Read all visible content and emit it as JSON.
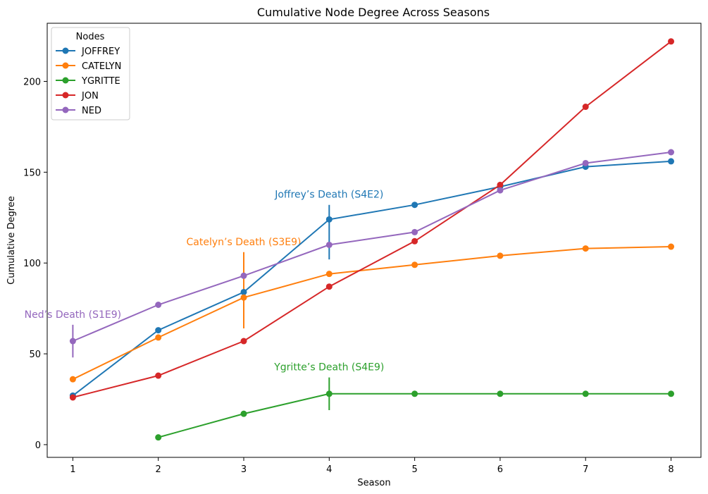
{
  "chart_data": {
    "type": "line",
    "title": "Cumulative Node Degree Across Seasons",
    "xlabel": "Season",
    "ylabel": "Cumulative Degree",
    "xlim": [
      0.7,
      8.35
    ],
    "ylim": [
      -7,
      232
    ],
    "xticks": [
      1,
      2,
      3,
      4,
      5,
      6,
      7,
      8
    ],
    "yticks": [
      0,
      50,
      100,
      150,
      200
    ],
    "grid": false,
    "legend": {
      "title": "Nodes",
      "placement": "top-left"
    },
    "series": [
      {
        "name": "JOFFREY",
        "color": "#1f77b4",
        "x": [
          1,
          2,
          3,
          4,
          5,
          6,
          7,
          8
        ],
        "values": [
          27,
          63,
          84,
          124,
          132,
          142,
          153,
          156
        ]
      },
      {
        "name": "CATELYN",
        "color": "#ff7f0e",
        "x": [
          1,
          2,
          3,
          4,
          5,
          6,
          7,
          8
        ],
        "values": [
          36,
          59,
          81,
          94,
          99,
          104,
          108,
          109
        ]
      },
      {
        "name": "YGRITTE",
        "color": "#2ca02c",
        "x": [
          2,
          3,
          4,
          5,
          6,
          7,
          8
        ],
        "values": [
          4,
          17,
          28,
          28,
          28,
          28,
          28
        ]
      },
      {
        "name": "JON",
        "color": "#d62728",
        "x": [
          1,
          2,
          3,
          4,
          5,
          6,
          7,
          8
        ],
        "values": [
          26,
          38,
          57,
          87,
          112,
          143,
          186,
          222
        ]
      },
      {
        "name": "NED",
        "color": "#9467bd",
        "x": [
          1,
          2,
          3,
          4,
          5,
          6,
          7,
          8
        ],
        "values": [
          57,
          77,
          93,
          110,
          117,
          140,
          155,
          161
        ]
      }
    ],
    "annotations": [
      {
        "text": "Ned’s Death (S1E9)",
        "x": 1,
        "y_low": 48,
        "y_high": 66,
        "color": "#9467bd"
      },
      {
        "text": "Catelyn’s Death (S3E9)",
        "x": 3,
        "y_low": 64,
        "y_high": 106,
        "color": "#ff7f0e"
      },
      {
        "text": "Joffrey’s Death (S4E2)",
        "x": 4,
        "y_low": 102,
        "y_high": 132,
        "color": "#1f77b4"
      },
      {
        "text": "Ygritte’s Death (S4E9)",
        "x": 4,
        "y_low": 19,
        "y_high": 37,
        "color": "#2ca02c"
      }
    ]
  }
}
